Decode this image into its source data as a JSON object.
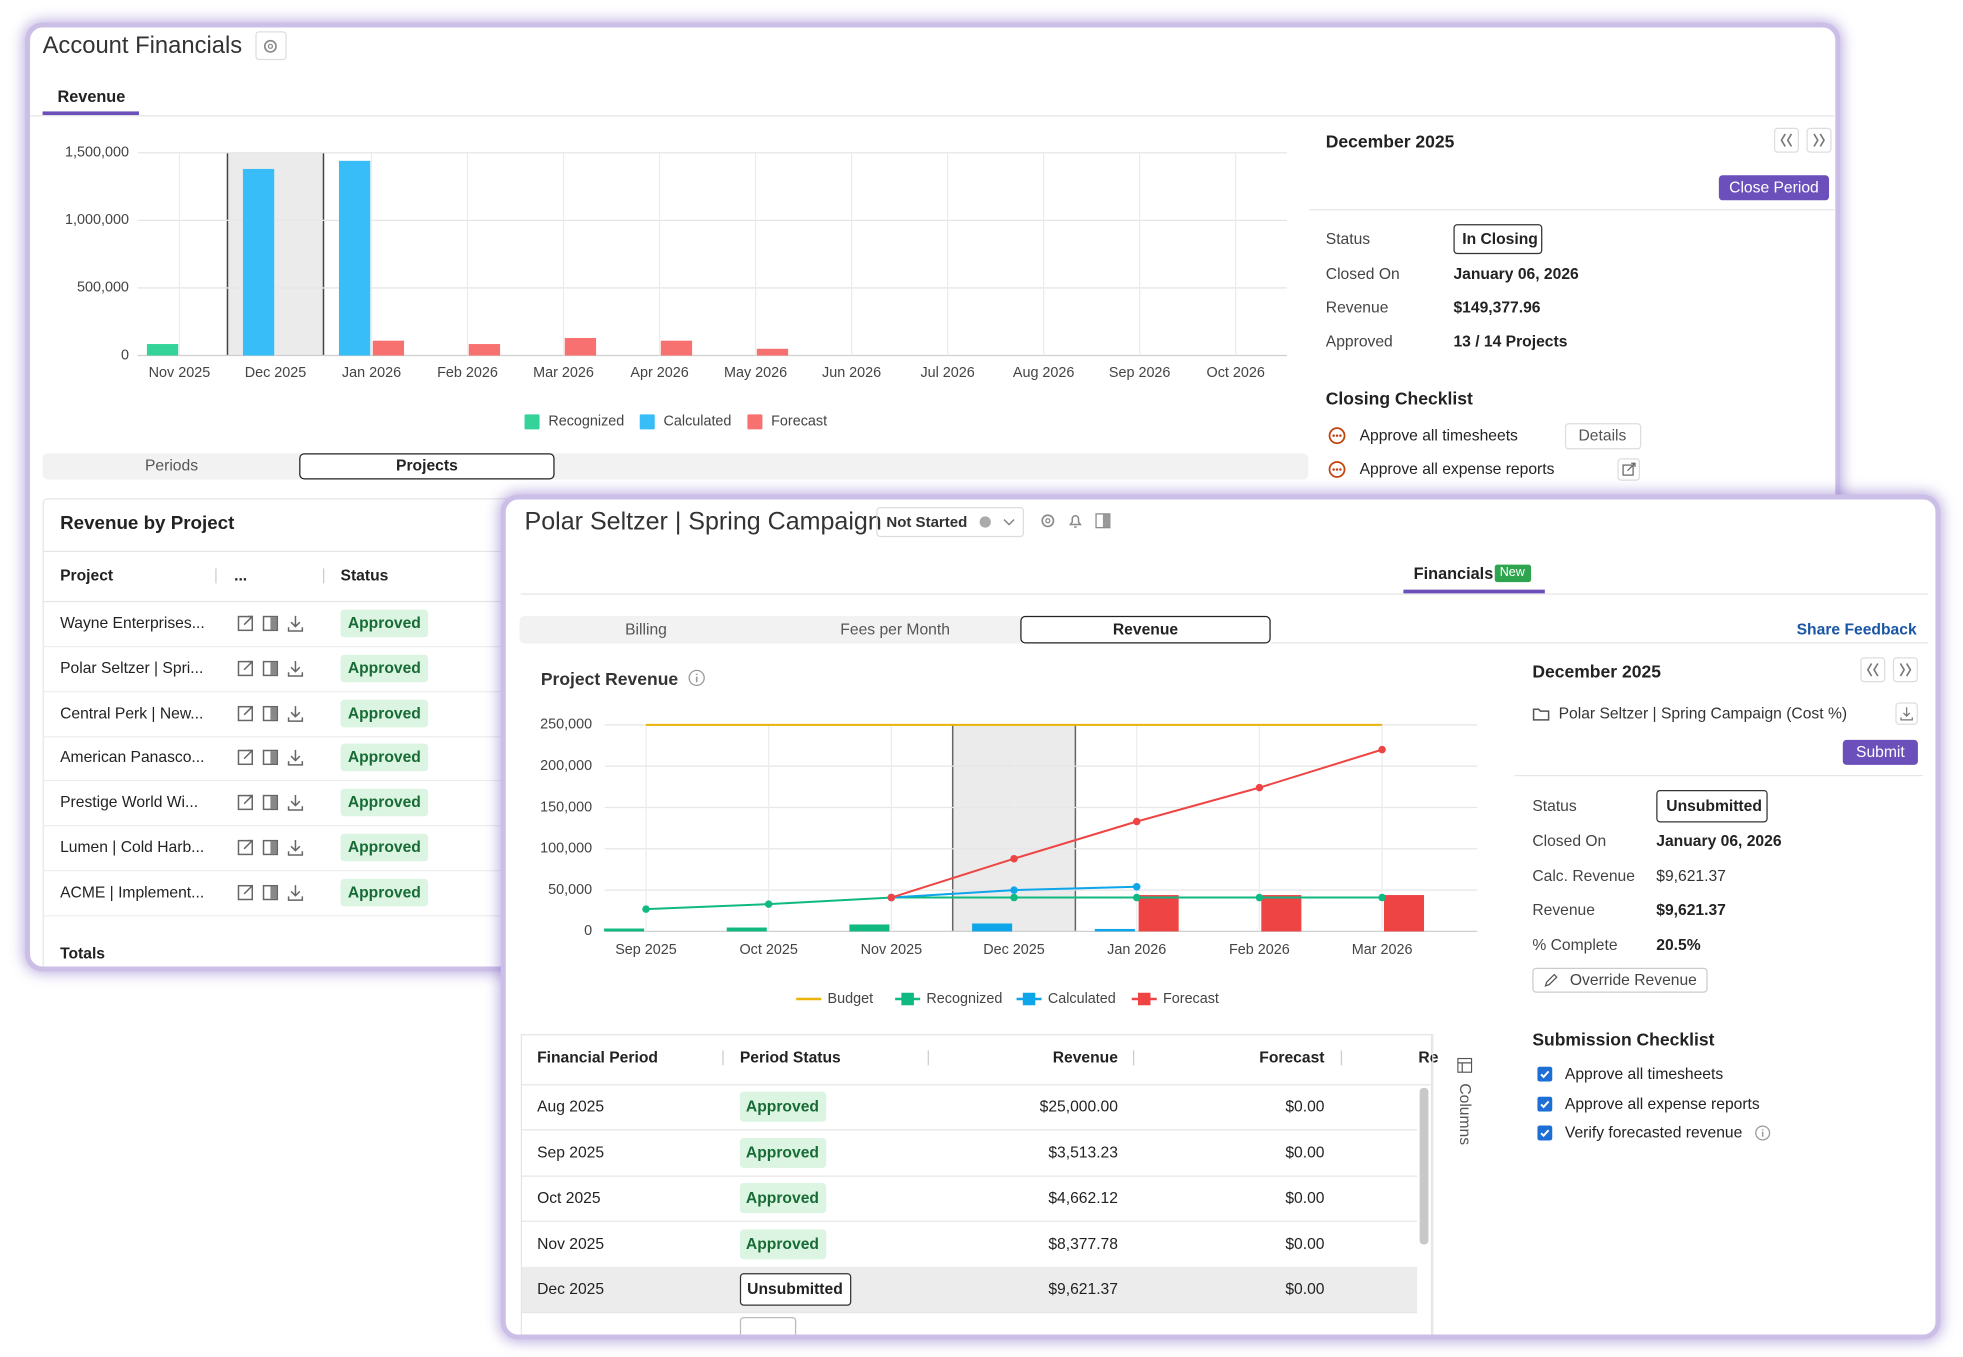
{
  "account_window": {
    "title": "Account Financials",
    "tab": "Revenue",
    "segments": [
      "Periods",
      "Projects"
    ],
    "table_title": "Revenue by Project",
    "columns": [
      "Project",
      "...",
      "Status"
    ],
    "rows": [
      [
        "Wayne Enterprises...",
        "Approved"
      ],
      [
        "Polar Seltzer | Spri...",
        "Approved"
      ],
      [
        "Central Perk | New...",
        "Approved"
      ],
      [
        "American Panasco...",
        "Approved"
      ],
      [
        "Prestige World Wi...",
        "Approved"
      ],
      [
        "Lumen | Cold Harb...",
        "Approved"
      ],
      [
        "ACME | Implement...",
        "Approved"
      ]
    ],
    "totals": "Totals",
    "panel": {
      "period": "December 2025",
      "action": "Close Period",
      "fields": [
        [
          "Status",
          "In Closing"
        ],
        [
          "Closed On",
          "January 06, 2026"
        ],
        [
          "Revenue",
          "$149,377.96"
        ],
        [
          "Approved",
          "13 / 14 Projects"
        ]
      ],
      "checklist_title": "Closing Checklist",
      "checklist": [
        "Approve all timesheets",
        "Approve all expense reports"
      ],
      "details": "Details"
    }
  },
  "project_window": {
    "title": "Polar Seltzer | Spring Campaign",
    "status": "Not Started",
    "tab": "Financials",
    "badge": "New",
    "segments": [
      "Billing",
      "Fees per Month",
      "Revenue"
    ],
    "feedback": "Share Feedback",
    "table": {
      "columns": [
        "Financial Period",
        "Period Status",
        "Revenue",
        "Forecast",
        "Re"
      ],
      "rows": [
        [
          "Aug 2025",
          "Approved",
          "$25,000.00",
          "$0.00"
        ],
        [
          "Sep 2025",
          "Approved",
          "$3,513.23",
          "$0.00"
        ],
        [
          "Oct 2025",
          "Approved",
          "$4,662.12",
          "$0.00"
        ],
        [
          "Nov 2025",
          "Approved",
          "$8,377.78",
          "$0.00"
        ],
        [
          "Dec 2025",
          "Unsubmitted",
          "$9,621.37",
          "$0.00"
        ]
      ]
    },
    "columns_button": "Columns",
    "panel": {
      "period": "December 2025",
      "project": "Polar Seltzer | Spring Campaign (Cost %)",
      "action": "Submit",
      "fields": [
        [
          "Status",
          "Unsubmitted"
        ],
        [
          "Closed On",
          "January 06, 2026"
        ],
        [
          "Calc. Revenue",
          "$9,621.37"
        ],
        [
          "Revenue",
          "$9,621.37"
        ],
        [
          "% Complete",
          "20.5%"
        ]
      ],
      "override": "Override Revenue",
      "checklist_title": "Submission Checklist",
      "checklist": [
        "Approve all timesheets",
        "Approve all expense reports",
        "Verify forecasted revenue"
      ]
    }
  },
  "chart_data": [
    {
      "type": "bar",
      "categories": [
        "Nov 2025",
        "Dec 2025",
        "Jan 2026",
        "Feb 2026",
        "Mar 2026",
        "Apr 2026",
        "May 2026",
        "Jun 2026",
        "Jul 2026",
        "Aug 2026",
        "Sep 2026",
        "Oct 2026"
      ],
      "series": [
        {
          "name": "Recognized",
          "color": "#34d399",
          "values": [
            85000,
            null,
            null,
            null,
            null,
            null,
            null,
            null,
            null,
            null,
            null,
            null
          ]
        },
        {
          "name": "Calculated",
          "color": "#38bdf8",
          "values": [
            null,
            1380000,
            1440000,
            null,
            null,
            null,
            null,
            null,
            null,
            null,
            null,
            null
          ]
        },
        {
          "name": "Forecast",
          "color": "#f87171",
          "values": [
            null,
            null,
            110000,
            85000,
            130000,
            110000,
            50000,
            null,
            null,
            null,
            null,
            null
          ]
        }
      ],
      "ylim": [
        0,
        1500000
      ],
      "yticks": [
        0,
        {
          "value": 500000,
          "label": "500,000"
        },
        {
          "value": 1000000,
          "label": "1,000,000"
        },
        {
          "value": 1500000,
          "label": "1,500,000"
        }
      ],
      "grid": true,
      "legend": "bottom",
      "highlight": "Dec 2025"
    },
    {
      "type": "line",
      "title": "Project Revenue",
      "categories": [
        "Sep 2025",
        "Oct 2025",
        "Nov 2025",
        "Dec 2025",
        "Jan 2026",
        "Feb 2026",
        "Mar 2026"
      ],
      "series": [
        {
          "name": "Budget",
          "color": "#eab308",
          "values": [
            250000,
            250000,
            250000,
            250000,
            250000,
            250000,
            250000
          ]
        },
        {
          "name": "Recognized",
          "color": "#10b981",
          "values": [
            27000,
            33000,
            41000,
            41000,
            41000,
            41000,
            41000
          ],
          "bar_values": [
            3500,
            4700,
            8400,
            null,
            null,
            null,
            null
          ]
        },
        {
          "name": "Calculated",
          "color": "#0ea5e9",
          "values": [
            null,
            null,
            41000,
            50000,
            54000,
            null,
            null
          ],
          "bar_values": [
            null,
            null,
            null,
            9600,
            3000,
            null,
            null
          ]
        },
        {
          "name": "Forecast",
          "color": "#ef4444",
          "values": [
            null,
            null,
            41000,
            88000,
            133000,
            174000,
            220000
          ],
          "bar_values": [
            null,
            null,
            null,
            null,
            44000,
            44000,
            44000
          ]
        }
      ],
      "ylim": [
        0,
        250000
      ],
      "yticks": [
        0,
        {
          "value": 50000,
          "label": "50,000"
        },
        {
          "value": 100000,
          "label": "100,000"
        },
        {
          "value": 150000,
          "label": "150,000"
        },
        {
          "value": 200000,
          "label": "200,000"
        },
        {
          "value": 250000,
          "label": "250,000"
        }
      ],
      "grid": true,
      "legend": "bottom",
      "highlight": "Dec 2025"
    }
  ]
}
